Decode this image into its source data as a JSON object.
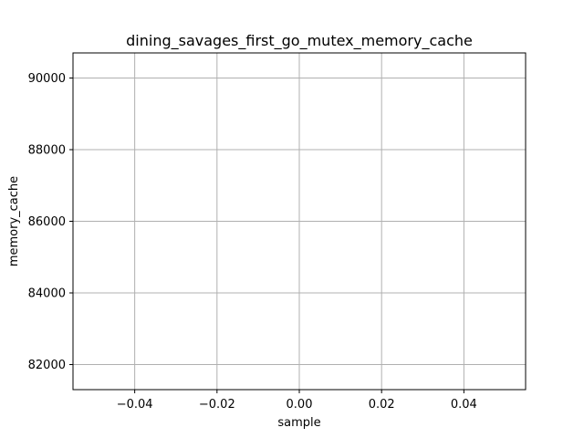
{
  "chart_data": {
    "type": "line",
    "title": "dining_savages_first_go_mutex_memory_cache",
    "xlabel": "sample",
    "ylabel": "memory_cache",
    "xlim": [
      -0.055,
      0.055
    ],
    "ylim": [
      81300,
      90700
    ],
    "x_ticks": [
      -0.04,
      -0.02,
      0.0,
      0.02,
      0.04
    ],
    "x_tick_labels": [
      "−0.04",
      "−0.02",
      "0.00",
      "0.02",
      "0.04"
    ],
    "y_ticks": [
      82000,
      84000,
      86000,
      88000,
      90000
    ],
    "y_tick_labels": [
      "82000",
      "84000",
      "86000",
      "88000",
      "90000"
    ],
    "grid": true,
    "legend": "none",
    "series": [
      {
        "x": [],
        "y": []
      }
    ]
  }
}
